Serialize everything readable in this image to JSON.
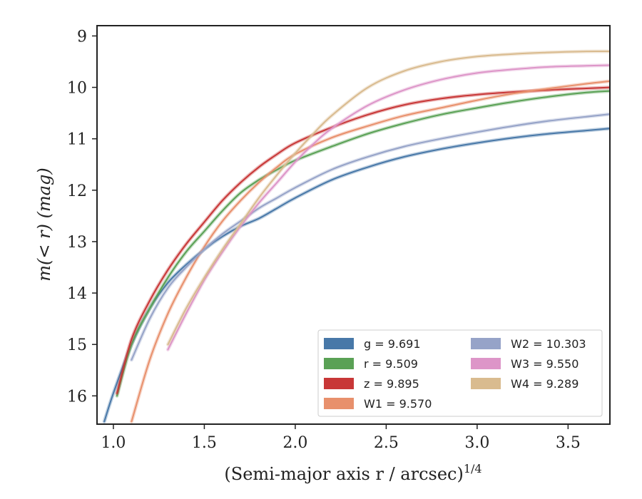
{
  "chart_data": {
    "type": "line",
    "xlabel_main": "(Semi-major axis r / arcsec)",
    "xlabel_sup": "1/4",
    "ylabel": "m(< r) (mag)",
    "xlim": [
      0.91,
      3.73
    ],
    "ylim": [
      16.55,
      8.8
    ],
    "y_inverted": true,
    "x_ticks": [
      1.0,
      1.5,
      2.0,
      2.5,
      3.0,
      3.5
    ],
    "x_tick_labels": [
      "1.0",
      "1.5",
      "2.0",
      "2.5",
      "3.0",
      "3.5"
    ],
    "y_ticks": [
      9,
      10,
      11,
      12,
      13,
      14,
      15,
      16
    ],
    "y_tick_labels": [
      "9",
      "10",
      "11",
      "12",
      "13",
      "14",
      "15",
      "16"
    ],
    "grid": false,
    "legend_position": "bottom-right",
    "legend_columns": 2,
    "series": [
      {
        "name": "g = 9.691",
        "color": "#4878a8",
        "x": [
          0.95,
          1.0,
          1.1,
          1.2,
          1.3,
          1.4,
          1.5,
          1.6,
          1.7,
          1.8,
          1.9,
          2.0,
          2.2,
          2.4,
          2.6,
          2.8,
          3.0,
          3.2,
          3.4,
          3.6,
          3.73
        ],
        "y": [
          16.5,
          15.95,
          15.0,
          14.3,
          13.8,
          13.45,
          13.15,
          12.9,
          12.7,
          12.55,
          12.35,
          12.15,
          11.8,
          11.55,
          11.35,
          11.2,
          11.08,
          10.98,
          10.9,
          10.84,
          10.8
        ]
      },
      {
        "name": "r = 9.509",
        "color": "#5aa155",
        "x": [
          1.02,
          1.1,
          1.2,
          1.3,
          1.4,
          1.5,
          1.6,
          1.7,
          1.8,
          1.9,
          2.0,
          2.2,
          2.4,
          2.6,
          2.8,
          3.0,
          3.2,
          3.4,
          3.6,
          3.73
        ],
        "y": [
          16.0,
          15.0,
          14.3,
          13.7,
          13.2,
          12.8,
          12.4,
          12.05,
          11.8,
          11.6,
          11.42,
          11.15,
          10.9,
          10.7,
          10.53,
          10.4,
          10.28,
          10.18,
          10.1,
          10.07
        ]
      },
      {
        "name": "z = 9.895",
        "color": "#c83737",
        "x": [
          1.02,
          1.1,
          1.2,
          1.3,
          1.4,
          1.5,
          1.6,
          1.7,
          1.8,
          1.9,
          2.0,
          2.2,
          2.4,
          2.6,
          2.8,
          3.0,
          3.2,
          3.4,
          3.6,
          3.73
        ],
        "y": [
          15.95,
          14.9,
          14.15,
          13.55,
          13.05,
          12.62,
          12.2,
          11.85,
          11.55,
          11.3,
          11.08,
          10.78,
          10.53,
          10.34,
          10.22,
          10.14,
          10.09,
          10.05,
          10.02,
          10.0
        ]
      },
      {
        "name": "W1 = 9.570",
        "color": "#e8906c",
        "x": [
          1.1,
          1.2,
          1.3,
          1.4,
          1.5,
          1.6,
          1.7,
          1.8,
          1.9,
          2.0,
          2.2,
          2.4,
          2.6,
          2.8,
          3.0,
          3.2,
          3.4,
          3.6,
          3.73
        ],
        "y": [
          16.5,
          15.3,
          14.4,
          13.7,
          13.1,
          12.6,
          12.2,
          11.85,
          11.55,
          11.3,
          10.98,
          10.75,
          10.55,
          10.4,
          10.25,
          10.12,
          10.02,
          9.93,
          9.88
        ]
      },
      {
        "name": "W2 = 10.303",
        "color": "#96a3c8",
        "x": [
          1.1,
          1.2,
          1.3,
          1.4,
          1.5,
          1.6,
          1.7,
          1.8,
          1.9,
          2.0,
          2.2,
          2.4,
          2.6,
          2.8,
          3.0,
          3.2,
          3.4,
          3.6,
          3.73
        ],
        "y": [
          15.3,
          14.5,
          13.9,
          13.5,
          13.15,
          12.85,
          12.6,
          12.35,
          12.15,
          11.95,
          11.6,
          11.35,
          11.15,
          11.0,
          10.87,
          10.75,
          10.65,
          10.57,
          10.52
        ]
      },
      {
        "name": "W3 = 9.550",
        "color": "#dd95c8",
        "x": [
          1.3,
          1.4,
          1.5,
          1.6,
          1.7,
          1.8,
          1.9,
          2.0,
          2.1,
          2.2,
          2.4,
          2.6,
          2.8,
          3.0,
          3.2,
          3.4,
          3.6,
          3.73
        ],
        "y": [
          15.1,
          14.4,
          13.75,
          13.2,
          12.7,
          12.25,
          11.85,
          11.45,
          11.1,
          10.8,
          10.35,
          10.05,
          9.85,
          9.72,
          9.65,
          9.6,
          9.58,
          9.57
        ]
      },
      {
        "name": "W4 = 9.289",
        "color": "#d9bb8f",
        "x": [
          1.3,
          1.4,
          1.5,
          1.6,
          1.7,
          1.8,
          1.9,
          2.0,
          2.1,
          2.2,
          2.4,
          2.6,
          2.8,
          3.0,
          3.2,
          3.4,
          3.6,
          3.73
        ],
        "y": [
          15.0,
          14.3,
          13.7,
          13.15,
          12.65,
          12.15,
          11.7,
          11.28,
          10.9,
          10.55,
          10.0,
          9.68,
          9.5,
          9.4,
          9.35,
          9.32,
          9.3,
          9.3
        ]
      }
    ]
  }
}
